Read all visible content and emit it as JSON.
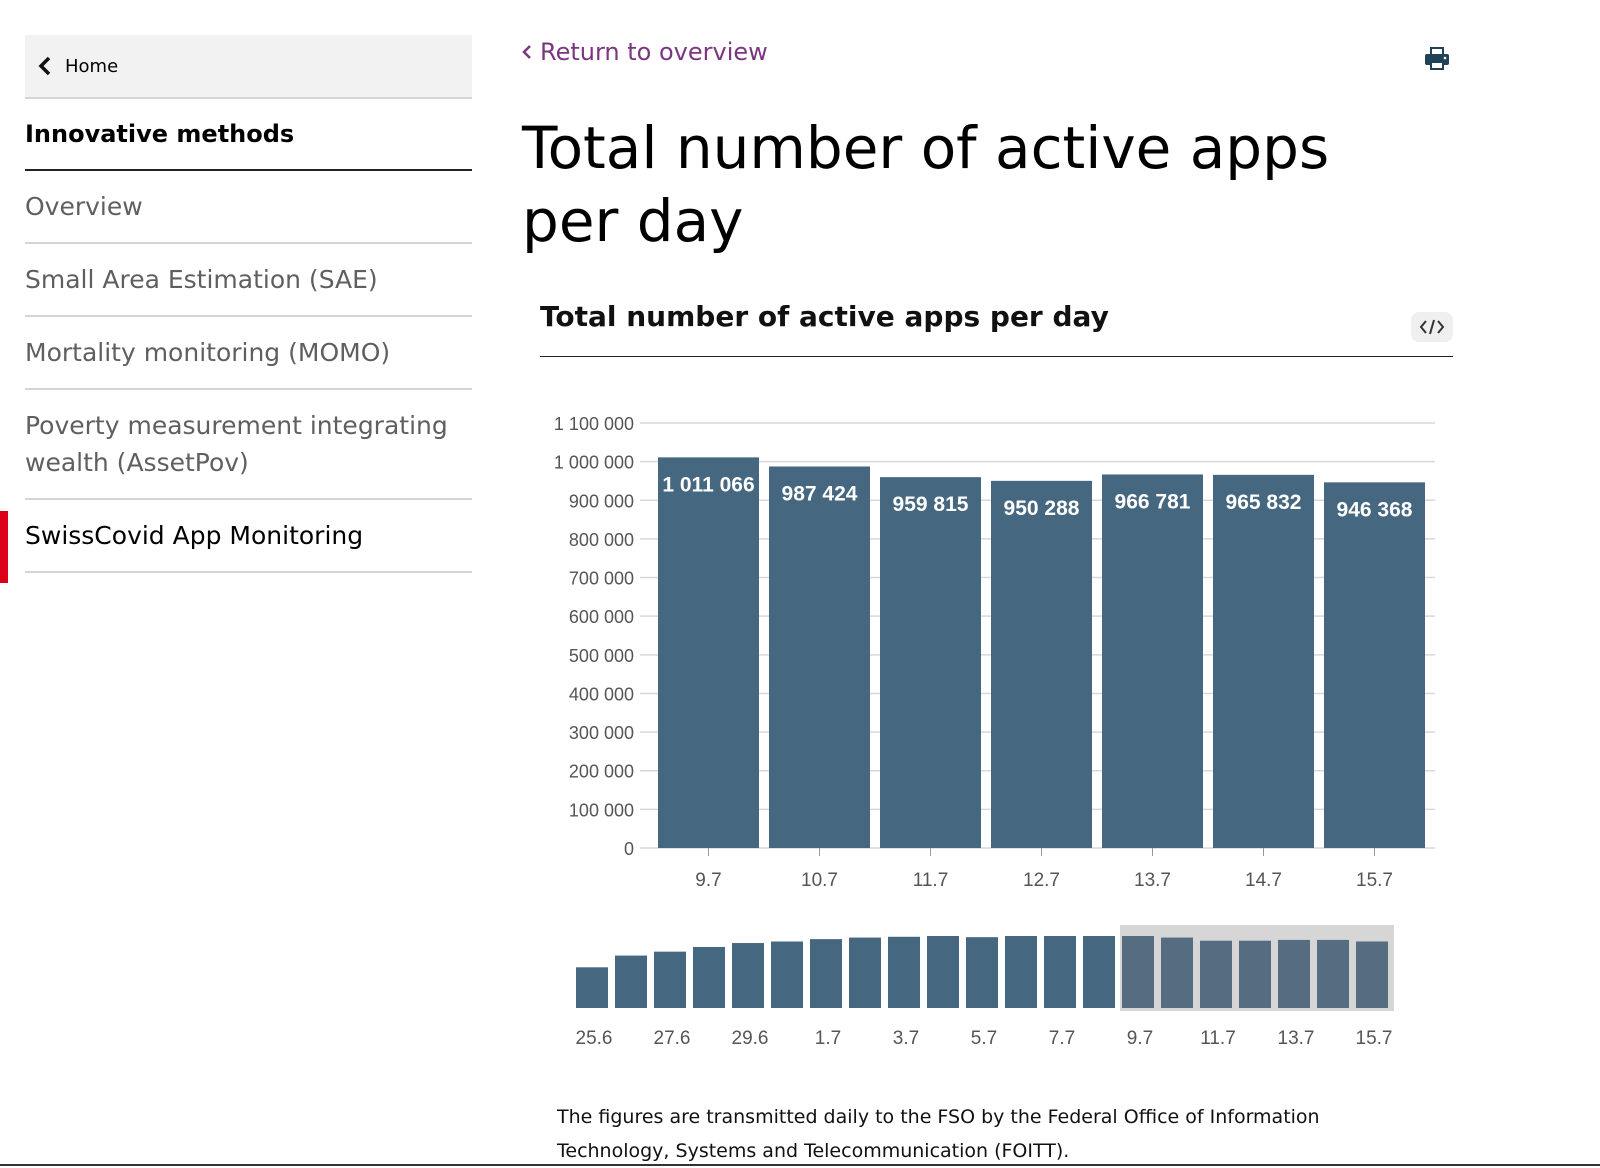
{
  "sidebar": {
    "home_label": "Home",
    "section_title": "Innovative methods",
    "items": [
      {
        "label": "Overview"
      },
      {
        "label": "Small Area Estimation (SAE)"
      },
      {
        "label": "Mortality monitoring (MOMO)"
      },
      {
        "label": "Poverty measurement integrating wealth (AssetPov)"
      },
      {
        "label": "SwissCovid App Monitoring",
        "active": true
      }
    ]
  },
  "header": {
    "return_label": "Return to overview",
    "page_title": "Total number of active apps per day"
  },
  "colors": {
    "bar": "#45677f",
    "nav_bar_unselected": "#45677f",
    "nav_bar_selected": "#566d81",
    "nav_window": "#d6d6d6",
    "link": "#7a3780",
    "active_marker": "#dc0018"
  },
  "chart_data": [
    {
      "type": "bar",
      "title": "Total number of active apps per day",
      "categories": [
        "9.7",
        "10.7",
        "11.7",
        "12.7",
        "13.7",
        "14.7",
        "15.7"
      ],
      "values": [
        1011066,
        987424,
        959815,
        950288,
        966781,
        965832,
        946368
      ],
      "value_labels": [
        "1 011 066",
        "987 424",
        "959 815",
        "950 288",
        "966 781",
        "965 832",
        "946 368"
      ],
      "ylim": [
        0,
        1100000
      ],
      "yticks": [
        0,
        100000,
        200000,
        300000,
        400000,
        500000,
        600000,
        700000,
        800000,
        900000,
        1000000,
        1100000
      ],
      "ytick_labels": [
        "0",
        "100 000",
        "200 000",
        "300 000",
        "400 000",
        "500 000",
        "600 000",
        "700 000",
        "800 000",
        "900 000",
        "1 000 000",
        "1 100 000"
      ],
      "grid": true
    },
    {
      "type": "bar",
      "role": "range-navigator",
      "values": [
        520000,
        670000,
        720000,
        780000,
        830000,
        850000,
        880000,
        900000,
        910000,
        920000,
        905000,
        920000,
        920000,
        920000,
        920000,
        900000,
        860000,
        860000,
        870000,
        870000,
        850000
      ],
      "xtick_labels": [
        "25.6",
        "27.6",
        "29.6",
        "1.7",
        "3.7",
        "5.7",
        "7.7",
        "9.7",
        "11.7",
        "13.7",
        "15.7"
      ],
      "selected_range": [
        "9.7",
        "15.7"
      ]
    }
  ],
  "footnote": "The figures are transmitted daily to the FSO by the Federal Office of Information Technology, Systems and Telecommunication (FOITT)."
}
